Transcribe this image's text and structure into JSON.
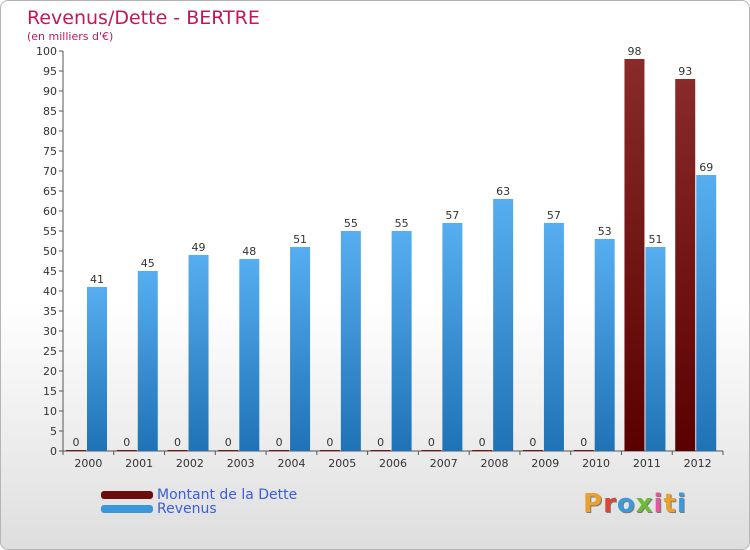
{
  "header": {
    "title": "Revenus/Dette - BERTRE",
    "subtitle": "(en milliers d'€)"
  },
  "chart_data": {
    "type": "bar",
    "title": "Revenus/Dette - BERTRE",
    "subtitle": "(en milliers d'€)",
    "categories": [
      "2000",
      "2001",
      "2002",
      "2003",
      "2004",
      "2005",
      "2006",
      "2007",
      "2008",
      "2009",
      "2010",
      "2011",
      "2012"
    ],
    "series": [
      {
        "name": "Montant de la Dette",
        "color": "#6b0d0d",
        "values": [
          0,
          0,
          0,
          0,
          0,
          0,
          0,
          0,
          0,
          0,
          0,
          98,
          93
        ]
      },
      {
        "name": "Revenus",
        "color": "#3a97dc",
        "values": [
          41,
          45,
          49,
          48,
          51,
          55,
          55,
          57,
          63,
          57,
          53,
          51,
          69
        ]
      }
    ],
    "ylim": [
      0,
      100
    ],
    "ytick_step": 5,
    "grid": false,
    "legend_placement": "bottom-left"
  },
  "legend": {
    "items": [
      {
        "label": "Montant de la Dette",
        "color": "#6b0d0d"
      },
      {
        "label": "Revenus",
        "color": "#3a97dc"
      }
    ]
  },
  "logo": {
    "text": "Proxiti",
    "letter_colors": [
      "#e8a030",
      "#d9463a",
      "#3d9ad9",
      "#6dbb3c",
      "#e05a9a",
      "#e8a030",
      "#3d9ad9"
    ]
  }
}
